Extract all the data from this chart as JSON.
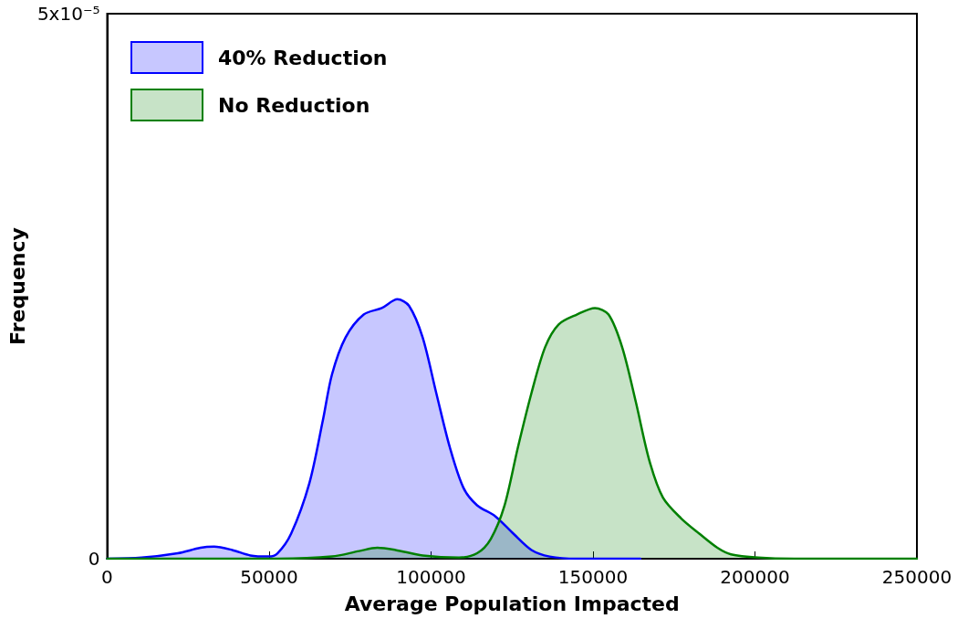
{
  "chart_data": {
    "type": "area",
    "xlabel": "Average Population Impacted",
    "ylabel": "Frequency",
    "xlim": [
      0,
      250000
    ],
    "xticks": [
      0,
      50000,
      100000,
      150000,
      200000,
      250000
    ],
    "ylim": [
      0,
      5e-05
    ],
    "yticks": [
      0,
      {
        "value": 5e-05,
        "label": "5x10⁻⁵"
      }
    ],
    "grid": false,
    "legend": "top left",
    "marker": "none",
    "line_style": "solid",
    "series": [
      {
        "name": "40% Reduction",
        "color": "#0000ff",
        "x": [
          0,
          10600,
          21800,
          28800,
          33000,
          38600,
          44200,
          49800,
          52600,
          56800,
          62400,
          66600,
          69400,
          73600,
          79200,
          84800,
          89600,
          93200,
          97400,
          101600,
          105800,
          110000,
          114200,
          119800,
          125400,
          131000,
          136600,
          145000,
          164600
        ],
        "values": [
          0,
          1e-07,
          5e-07,
          1e-06,
          1.1e-06,
          8e-07,
          3e-07,
          2e-07,
          5e-07,
          2.3e-06,
          6.9e-06,
          1.27e-05,
          1.69e-05,
          2.03e-05,
          2.24e-05,
          2.3e-05,
          2.38e-05,
          2.32e-05,
          2.03e-05,
          1.52e-05,
          1.02e-05,
          6.5e-06,
          4.9e-06,
          3.9e-06,
          2.3e-06,
          8e-07,
          2e-07,
          0,
          0
        ]
      },
      {
        "name": "No Reduction",
        "color": "#008000",
        "x": [
          0,
          52600,
          69400,
          77800,
          83400,
          89000,
          97400,
          108600,
          114200,
          118400,
          122600,
          126800,
          131000,
          135200,
          139400,
          145000,
          150600,
          154800,
          159000,
          163200,
          167400,
          171600,
          177200,
          182800,
          188400,
          192600,
          201000,
          212200,
          250000
        ],
        "values": [
          0,
          0,
          2e-07,
          7e-07,
          1e-06,
          8e-07,
          3e-07,
          1e-07,
          5e-07,
          1.8e-06,
          4.8e-06,
          1.02e-05,
          1.52e-05,
          1.94e-05,
          2.15e-05,
          2.24e-05,
          2.3e-05,
          2.24e-05,
          1.94e-05,
          1.44e-05,
          9e-06,
          5.6e-06,
          3.7e-06,
          2.3e-06,
          1e-06,
          4e-07,
          1e-07,
          0,
          0
        ]
      }
    ]
  }
}
